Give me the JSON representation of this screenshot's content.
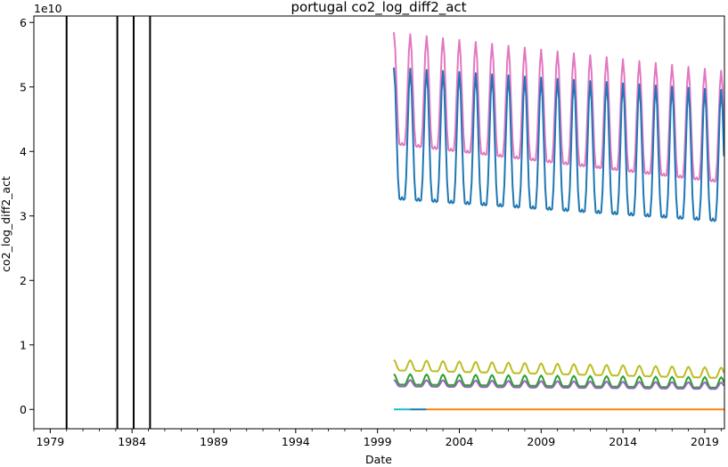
{
  "chart_data": {
    "type": "line",
    "title": "portugal co2_log_diff2_act",
    "xlabel": "Date",
    "ylabel": "co2_log_diff2_act",
    "y_offset_label": "1e10",
    "x_tick_labels": [
      "1979",
      "1984",
      "1989",
      "1994",
      "1999",
      "2004",
      "2009",
      "2014",
      "2019"
    ],
    "x_tick_years": [
      1979,
      1984,
      1989,
      1994,
      1999,
      2004,
      2009,
      2014,
      2019
    ],
    "y_tick_labels": [
      "0",
      "1",
      "2",
      "3",
      "4",
      "5",
      "6"
    ],
    "y_tick_values": [
      0,
      1,
      2,
      3,
      4,
      5,
      6
    ],
    "xlim": [
      1978.0,
      2020.2
    ],
    "ylim": [
      -0.3,
      6.1
    ],
    "grid": false,
    "legend": "none",
    "vertical_lines": [
      1980.0,
      1983.1,
      1984.1,
      1985.1
    ],
    "series": [
      {
        "color": "#e377c2",
        "start": 2000.0,
        "end": 2020.2,
        "base": 4.7,
        "amp": 0.85,
        "trend": -0.6
      },
      {
        "color": "#1f77b4",
        "start": 2000.0,
        "end": 2020.2,
        "base": 3.95,
        "amp": 1.0,
        "trend": -0.35
      },
      {
        "color": "#bcbd22",
        "start": 2000.0,
        "end": 2020.2,
        "base": 0.66,
        "amp": 0.08,
        "trend": -0.12
      },
      {
        "color": "#2ca02c",
        "start": 2000.0,
        "end": 2020.2,
        "base": 0.44,
        "amp": 0.08,
        "trend": -0.05
      },
      {
        "color": "#9467bd",
        "start": 2000.0,
        "end": 2020.2,
        "base": 0.39,
        "amp": 0.05,
        "trend": -0.04
      },
      {
        "color": "#17becf",
        "start": 2000.0,
        "end": 2001.0,
        "base": 0.0,
        "amp": 0.0,
        "trend": 0.0
      },
      {
        "color": "#1f77b4",
        "start": 2001.0,
        "end": 2002.0,
        "base": 0.0,
        "amp": 0.0,
        "trend": 0.0
      },
      {
        "color": "#ff7f0e",
        "start": 2002.0,
        "end": 2020.2,
        "base": 0.0,
        "amp": 0.0,
        "trend": 0.0
      }
    ]
  }
}
